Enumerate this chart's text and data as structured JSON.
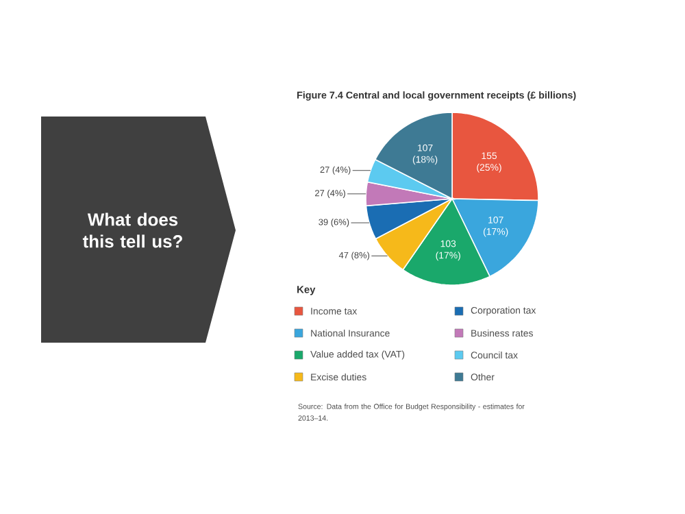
{
  "chart_data": {
    "type": "pie",
    "title": "Figure 7.4 Central and local government receipts (£ billions)",
    "categories": [
      "Income tax",
      "National Insurance",
      "Value added tax (VAT)",
      "Excise duties",
      "Corporation tax",
      "Business rates",
      "Council tax",
      "Other"
    ],
    "values": [
      155,
      107,
      103,
      47,
      39,
      27,
      27,
      107
    ],
    "value_labels": [
      "155 (25%)",
      "107 (17%)",
      "103 (17%)",
      "47 (8%)",
      "39 (6%)",
      "27 (4%)",
      "27 (4%)",
      "107 (18%)"
    ],
    "colors": [
      "#e8563f",
      "#3aa6dd",
      "#1aa86b",
      "#f6b91a",
      "#1a6db3",
      "#c279b8",
      "#5ccaf0",
      "#3e7a94"
    ],
    "legend_title": "Key",
    "legend": "bottom",
    "annotations": [
      "Source: Data from the Office for Budget Responsibility - estimates for 2013–14.",
      "What does this tell us?"
    ]
  }
}
